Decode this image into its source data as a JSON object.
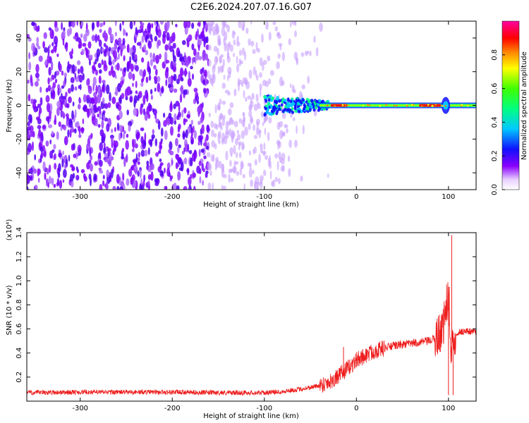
{
  "figure": {
    "title": "C2E6.2024.207.07.16.G07"
  },
  "colors": {
    "snr_line": "#ee1c1c",
    "dense_scatter": "#7f00ff",
    "background": "#ffffff"
  },
  "chart_data": [
    {
      "type": "heatmap",
      "xlabel": "Height of straight line (km)",
      "ylabel": "Frequency (Hz)",
      "xlim": [
        -358,
        130
      ],
      "ylim": [
        -50,
        50
      ],
      "xticks": [
        -300,
        -200,
        -100,
        0,
        100
      ],
      "yticks": [
        -40,
        -20,
        0,
        20,
        40
      ],
      "colorbar": {
        "label": "Normalized spectral amplitude",
        "range": [
          0.0,
          1.0
        ],
        "ticks": [
          0.0,
          0.2,
          0.4,
          0.6,
          0.8
        ],
        "tick_labels": [
          "0.0",
          "0.2",
          "0.4",
          "0.6",
          "0.8"
        ],
        "colormap": "rainbow (white/violet low → red high)"
      },
      "description_of_field": {
        "noise_region_x": [
          -358,
          -40
        ],
        "signal_band_frequency_hz": 0,
        "signal_band_x": [
          -100,
          130
        ],
        "peak_amplitude_segments_x": [
          [
            -28,
            -10
          ],
          [
            68,
            92
          ]
        ]
      }
    },
    {
      "type": "line",
      "xlabel": "Height of straight line (km)",
      "ylabel": "SNR (10 * v/v)",
      "y_multiplier": "(x10⁴)",
      "xlim": [
        -358,
        130
      ],
      "ylim": [
        0,
        1.4
      ],
      "xticks": [
        -300,
        -200,
        -100,
        0,
        100
      ],
      "yticks": [
        0.2,
        0.4,
        0.6,
        0.8,
        1.0,
        1.2,
        1.4
      ],
      "ytick_labels": [
        "0.2",
        "0.4",
        "0.6",
        "0.8",
        "1.0",
        "1.2",
        "1.4"
      ],
      "series": [
        {
          "x": [
            -358,
            -300,
            -250,
            -200,
            -150,
            -120,
            -100,
            -80,
            -60,
            -40,
            -30,
            -20,
            -15,
            -10,
            -5,
            0,
            10,
            20,
            30,
            40,
            50,
            60,
            70,
            80,
            85,
            90,
            95,
            100,
            102,
            104,
            106,
            110,
            115,
            120,
            130
          ],
          "y": [
            0.07,
            0.075,
            0.075,
            0.075,
            0.07,
            0.07,
            0.07,
            0.08,
            0.1,
            0.13,
            0.16,
            0.2,
            0.24,
            0.27,
            0.3,
            0.34,
            0.38,
            0.42,
            0.44,
            0.46,
            0.47,
            0.48,
            0.49,
            0.5,
            0.52,
            0.56,
            0.65,
            0.9,
            0.35,
            0.5,
            0.55,
            0.57,
            0.58,
            0.58,
            0.58
          ],
          "spikes": [
            {
              "x": 103.5,
              "y": 1.38
            },
            {
              "x": 101,
              "y": 0.95
            },
            {
              "x": 100,
              "y": 0.05
            },
            {
              "x": 105,
              "y": 0.05
            },
            {
              "x": -14,
              "y": 0.45
            }
          ]
        }
      ]
    }
  ]
}
